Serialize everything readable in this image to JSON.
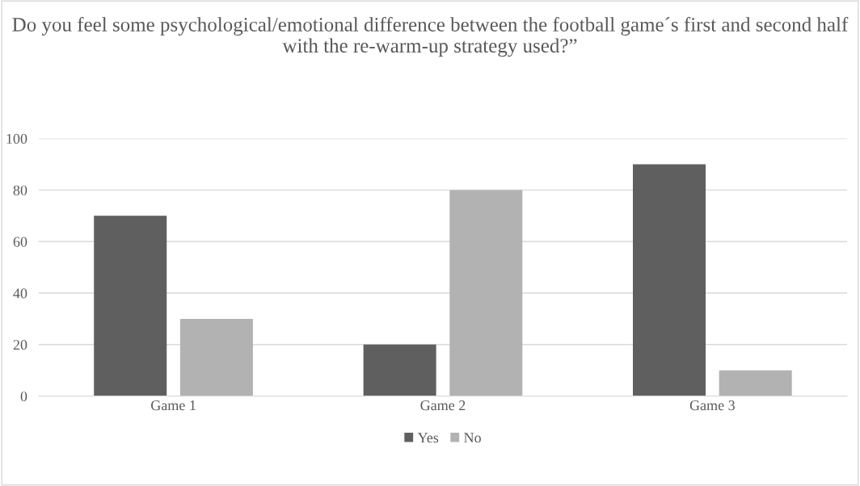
{
  "chart_data": {
    "type": "bar",
    "title": "Do you feel some psychological/emotional difference between the football game´s first and second half with the re-warm-up strategy used?”",
    "categories": [
      "Game 1",
      "Game 2",
      "Game 3"
    ],
    "series": [
      {
        "name": "Yes",
        "color": "#5f5f5f",
        "values": [
          70,
          20,
          90
        ]
      },
      {
        "name": "No",
        "color": "#b2b2b2",
        "values": [
          30,
          80,
          10
        ]
      }
    ],
    "ylim": [
      0,
      100
    ],
    "yticks": [
      0,
      20,
      40,
      60,
      80,
      100
    ],
    "grid": "y",
    "legend": "bottom"
  }
}
